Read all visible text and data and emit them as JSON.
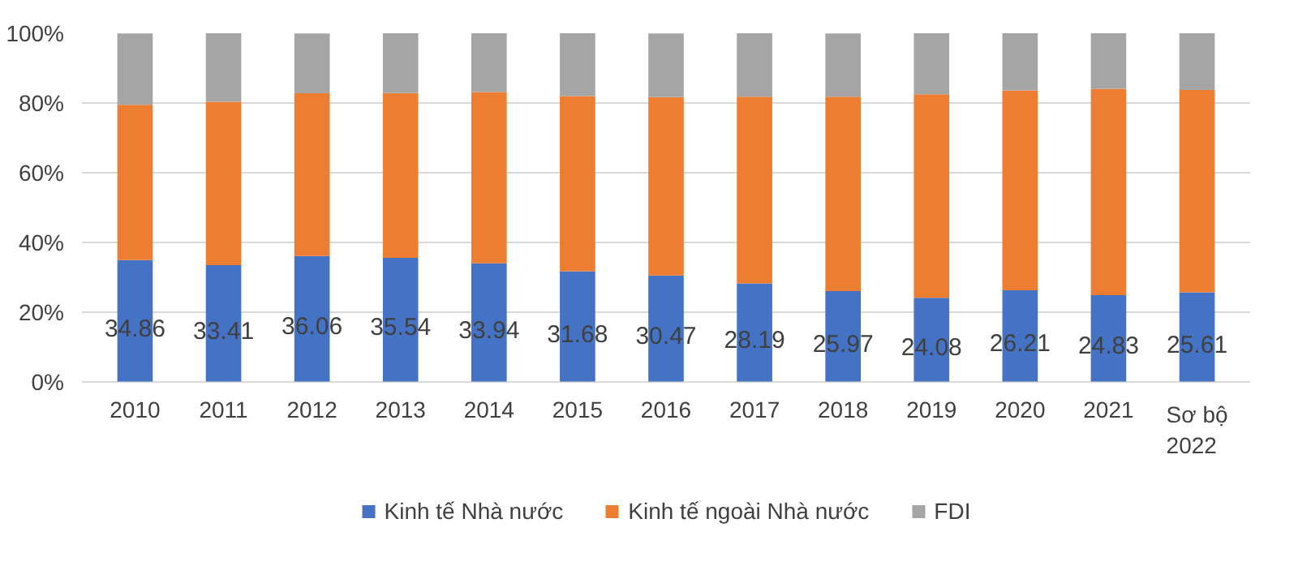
{
  "chart_data": {
    "type": "bar",
    "stacked": true,
    "categories": [
      "2010",
      "2011",
      "2012",
      "2013",
      "2014",
      "2015",
      "2016",
      "2017",
      "2018",
      "2019",
      "2020",
      "2021",
      "Sơ bộ\n2022"
    ],
    "series": [
      {
        "name": "Kinh tế Nhà nước",
        "color": "#4472c4",
        "values": [
          34.86,
          33.41,
          36.06,
          35.54,
          33.94,
          31.68,
          30.47,
          28.19,
          25.97,
          24.08,
          26.21,
          24.83,
          25.61
        ],
        "value_labels": [
          "34.86",
          "33.41",
          "36.06",
          "35.54",
          "33.94",
          "31.68",
          "30.47",
          "28.19",
          "25.97",
          "24.08",
          "26.21",
          "24.83",
          "25.61"
        ]
      },
      {
        "name": "Kinh tế ngoài Nhà nước",
        "color": "#ed7d31",
        "values": [
          44.6,
          46.9,
          46.7,
          47.3,
          49.2,
          50.3,
          51.2,
          53.6,
          55.8,
          58.4,
          57.4,
          59.2,
          58.1
        ]
      },
      {
        "name": "FDI",
        "color": "#a5a5a5",
        "values": [
          20.5,
          19.7,
          17.2,
          17.2,
          16.9,
          18.0,
          18.3,
          18.2,
          18.2,
          17.5,
          16.4,
          16.0,
          16.3
        ]
      }
    ],
    "ylim": [
      0,
      100
    ],
    "yticks": [
      {
        "value": 0,
        "label": "0%"
      },
      {
        "value": 20,
        "label": "20%"
      },
      {
        "value": 40,
        "label": "40%"
      },
      {
        "value": 60,
        "label": "60%"
      },
      {
        "value": 80,
        "label": "80%"
      },
      {
        "value": 100,
        "label": "100%"
      }
    ],
    "grid": "y",
    "legend": "bottom"
  }
}
